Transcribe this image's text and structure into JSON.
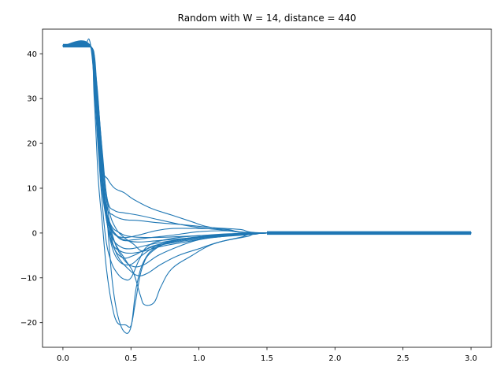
{
  "chart_data": {
    "type": "line",
    "title": "Random with W = 14, distance = 440",
    "xlabel": "",
    "ylabel": "",
    "xlim": [
      -0.15,
      3.15
    ],
    "ylim": [
      -25.5,
      45.5
    ],
    "x_ticks": [
      0.0,
      0.5,
      1.0,
      1.5,
      2.0,
      2.5,
      3.0
    ],
    "x_tick_labels": [
      "0.0",
      "0.5",
      "1.0",
      "1.5",
      "2.0",
      "2.5",
      "3.0"
    ],
    "y_ticks": [
      -20,
      -10,
      0,
      10,
      20,
      30,
      40
    ],
    "y_tick_labels": [
      "−20",
      "−10",
      "0",
      "10",
      "20",
      "30",
      "40"
    ],
    "grid": false,
    "legend": "none",
    "line_color": "#1f77b4",
    "flat_band": {
      "x_start": 0.0,
      "x_end": 0.2,
      "y": 41.8
    },
    "steady_band": {
      "x_start": 1.5,
      "x_end": 3.0,
      "y": 0.0
    },
    "series": [
      {
        "points": [
          [
            0.0,
            41.8
          ],
          [
            0.15,
            41.8
          ],
          [
            0.2,
            42.5
          ],
          [
            0.24,
            30
          ],
          [
            0.28,
            12
          ],
          [
            0.32,
            3
          ],
          [
            0.36,
            -1
          ],
          [
            0.42,
            -3
          ],
          [
            0.5,
            -3.5
          ],
          [
            0.65,
            -2.5
          ],
          [
            0.85,
            -1.5
          ],
          [
            1.1,
            -0.8
          ],
          [
            1.4,
            -0.3
          ],
          [
            1.5,
            0
          ],
          [
            3.0,
            0
          ]
        ]
      },
      {
        "points": [
          [
            0.0,
            41.8
          ],
          [
            0.2,
            41.8
          ],
          [
            0.24,
            36
          ],
          [
            0.28,
            20
          ],
          [
            0.32,
            5
          ],
          [
            0.36,
            -10
          ],
          [
            0.4,
            -18
          ],
          [
            0.45,
            -22
          ],
          [
            0.5,
            -21
          ],
          [
            0.54,
            -12
          ],
          [
            0.6,
            -6
          ],
          [
            0.7,
            -3
          ],
          [
            0.9,
            -1.5
          ],
          [
            1.2,
            -0.5
          ],
          [
            1.5,
            0
          ],
          [
            3.0,
            0
          ]
        ]
      },
      {
        "points": [
          [
            0.0,
            41.8
          ],
          [
            0.2,
            41.8
          ],
          [
            0.23,
            30
          ],
          [
            0.26,
            12
          ],
          [
            0.29,
            2
          ],
          [
            0.32,
            -8
          ],
          [
            0.36,
            -16
          ],
          [
            0.4,
            -20
          ],
          [
            0.46,
            -20.5
          ],
          [
            0.5,
            -20.7
          ],
          [
            0.53,
            -16
          ],
          [
            0.58,
            -8
          ],
          [
            0.66,
            -4
          ],
          [
            0.85,
            -1.5
          ],
          [
            1.2,
            -0.5
          ],
          [
            1.5,
            0
          ],
          [
            3.0,
            0
          ]
        ]
      },
      {
        "points": [
          [
            0.0,
            41.8
          ],
          [
            0.2,
            41.8
          ],
          [
            0.24,
            32
          ],
          [
            0.28,
            14
          ],
          [
            0.32,
            4
          ],
          [
            0.38,
            -2
          ],
          [
            0.46,
            -6
          ],
          [
            0.52,
            -9
          ],
          [
            0.57,
            -14
          ],
          [
            0.6,
            -16
          ],
          [
            0.67,
            -15.5
          ],
          [
            0.72,
            -12
          ],
          [
            0.8,
            -8
          ],
          [
            0.95,
            -5
          ],
          [
            1.1,
            -2.5
          ],
          [
            1.3,
            -1
          ],
          [
            1.5,
            0
          ],
          [
            3.0,
            0
          ]
        ]
      },
      {
        "points": [
          [
            0.0,
            41.8
          ],
          [
            0.2,
            41.8
          ],
          [
            0.25,
            30
          ],
          [
            0.29,
            15
          ],
          [
            0.33,
            12
          ],
          [
            0.38,
            10
          ],
          [
            0.45,
            9
          ],
          [
            0.52,
            7.5
          ],
          [
            0.65,
            5.5
          ],
          [
            0.8,
            4
          ],
          [
            0.95,
            2.5
          ],
          [
            1.05,
            1.5
          ],
          [
            1.2,
            0.8
          ],
          [
            1.5,
            0
          ],
          [
            3.0,
            0
          ]
        ]
      },
      {
        "points": [
          [
            0.0,
            41.8
          ],
          [
            0.2,
            41.8
          ],
          [
            0.24,
            33
          ],
          [
            0.28,
            16
          ],
          [
            0.32,
            6
          ],
          [
            0.37,
            4
          ],
          [
            0.45,
            3
          ],
          [
            0.55,
            2.8
          ],
          [
            0.7,
            2.3
          ],
          [
            0.9,
            1.8
          ],
          [
            1.1,
            1.2
          ],
          [
            1.3,
            0.8
          ],
          [
            1.5,
            0
          ],
          [
            3.0,
            0
          ]
        ]
      },
      {
        "points": [
          [
            0.0,
            41.8
          ],
          [
            0.2,
            41.8
          ],
          [
            0.24,
            34
          ],
          [
            0.29,
            18
          ],
          [
            0.33,
            5
          ],
          [
            0.38,
            -2
          ],
          [
            0.45,
            -6
          ],
          [
            0.52,
            -7.5
          ],
          [
            0.6,
            -7
          ],
          [
            0.7,
            -5
          ],
          [
            0.85,
            -3
          ],
          [
            1.0,
            -1.5
          ],
          [
            1.2,
            -0.7
          ],
          [
            1.5,
            0
          ],
          [
            3.0,
            0
          ]
        ]
      },
      {
        "points": [
          [
            0.0,
            41.8
          ],
          [
            0.2,
            41.8
          ],
          [
            0.23,
            32
          ],
          [
            0.27,
            14
          ],
          [
            0.31,
            0
          ],
          [
            0.35,
            -6
          ],
          [
            0.4,
            -9
          ],
          [
            0.45,
            -10.3
          ],
          [
            0.5,
            -10
          ],
          [
            0.56,
            -6
          ],
          [
            0.62,
            -3
          ],
          [
            0.75,
            -1.5
          ],
          [
            1.0,
            -0.6
          ],
          [
            1.5,
            0
          ],
          [
            3.0,
            0
          ]
        ]
      },
      {
        "points": [
          [
            0.0,
            41.8
          ],
          [
            0.2,
            41.8
          ],
          [
            0.24,
            35
          ],
          [
            0.28,
            18
          ],
          [
            0.32,
            4
          ],
          [
            0.36,
            -3
          ],
          [
            0.42,
            -6.5
          ],
          [
            0.5,
            -7
          ],
          [
            0.58,
            -5
          ],
          [
            0.68,
            -3
          ],
          [
            0.8,
            -1.8
          ],
          [
            1.0,
            -1
          ],
          [
            1.3,
            -0.4
          ],
          [
            1.5,
            0
          ],
          [
            3.0,
            0
          ]
        ]
      },
      {
        "points": [
          [
            0.0,
            41.8
          ],
          [
            0.2,
            41.8
          ],
          [
            0.25,
            28
          ],
          [
            0.3,
            10
          ],
          [
            0.35,
            0
          ],
          [
            0.4,
            -5
          ],
          [
            0.48,
            -8
          ],
          [
            0.55,
            -9.5
          ],
          [
            0.62,
            -9
          ],
          [
            0.72,
            -7
          ],
          [
            0.85,
            -5
          ],
          [
            1.0,
            -3.5
          ],
          [
            1.15,
            -2
          ],
          [
            1.35,
            -0.8
          ],
          [
            1.5,
            0
          ],
          [
            3.0,
            0
          ]
        ]
      },
      {
        "points": [
          [
            0.0,
            41.8
          ],
          [
            0.2,
            41.8
          ],
          [
            0.22,
            38
          ],
          [
            0.26,
            22
          ],
          [
            0.3,
            8
          ],
          [
            0.35,
            2
          ],
          [
            0.42,
            0
          ],
          [
            0.5,
            -0.8
          ],
          [
            0.65,
            -1
          ],
          [
            0.85,
            -0.8
          ],
          [
            1.05,
            -0.5
          ],
          [
            1.3,
            -0.2
          ],
          [
            1.5,
            0
          ],
          [
            3.0,
            0
          ]
        ]
      },
      {
        "points": [
          [
            0.0,
            41.8
          ],
          [
            0.2,
            41.8
          ],
          [
            0.24,
            33
          ],
          [
            0.28,
            15
          ],
          [
            0.32,
            3
          ],
          [
            0.37,
            -3
          ],
          [
            0.44,
            -5.5
          ],
          [
            0.52,
            -5
          ],
          [
            0.62,
            -3.5
          ],
          [
            0.75,
            -2.5
          ],
          [
            0.95,
            -1.5
          ],
          [
            1.2,
            -0.6
          ],
          [
            1.5,
            0
          ],
          [
            3.0,
            0
          ]
        ]
      },
      {
        "points": [
          [
            0.0,
            41.8
          ],
          [
            0.2,
            41.8
          ],
          [
            0.25,
            32
          ],
          [
            0.3,
            14
          ],
          [
            0.34,
            5
          ],
          [
            0.39,
            1
          ],
          [
            0.45,
            -1
          ],
          [
            0.52,
            -2.5
          ],
          [
            0.58,
            -4
          ],
          [
            0.65,
            -3
          ],
          [
            0.78,
            -2
          ],
          [
            0.95,
            -1
          ],
          [
            1.2,
            -0.3
          ],
          [
            1.5,
            0
          ],
          [
            3.0,
            0
          ]
        ]
      },
      {
        "points": [
          [
            0.0,
            41.8
          ],
          [
            0.2,
            41.8
          ],
          [
            0.23,
            34
          ],
          [
            0.27,
            17
          ],
          [
            0.31,
            5
          ],
          [
            0.36,
            -2
          ],
          [
            0.42,
            -4
          ],
          [
            0.5,
            -4.5
          ],
          [
            0.6,
            -4
          ],
          [
            0.72,
            -3
          ],
          [
            0.9,
            -2
          ],
          [
            1.1,
            -1
          ],
          [
            1.35,
            -0.4
          ],
          [
            1.5,
            0
          ],
          [
            3.0,
            0
          ]
        ]
      },
      {
        "points": [
          [
            0.0,
            41.8
          ],
          [
            0.2,
            41.8
          ],
          [
            0.24,
            31
          ],
          [
            0.28,
            13
          ],
          [
            0.33,
            3
          ],
          [
            0.38,
            0
          ],
          [
            0.45,
            -1.5
          ],
          [
            0.55,
            -2
          ],
          [
            0.7,
            -1.7
          ],
          [
            0.9,
            -1.2
          ],
          [
            1.1,
            -0.6
          ],
          [
            1.3,
            -0.2
          ],
          [
            1.5,
            0
          ],
          [
            3.0,
            0
          ]
        ]
      },
      {
        "points": [
          [
            0.0,
            41.8
          ],
          [
            0.2,
            41.8
          ],
          [
            0.25,
            33
          ],
          [
            0.29,
            16
          ],
          [
            0.33,
            7
          ],
          [
            0.38,
            5
          ],
          [
            0.45,
            4.5
          ],
          [
            0.55,
            4
          ],
          [
            0.7,
            3
          ],
          [
            0.85,
            2
          ],
          [
            1.0,
            1.2
          ],
          [
            1.2,
            0.6
          ],
          [
            1.5,
            0
          ],
          [
            3.0,
            0
          ]
        ]
      },
      {
        "points": [
          [
            0.0,
            41.8
          ],
          [
            0.2,
            41.8
          ],
          [
            0.24,
            34
          ],
          [
            0.28,
            16
          ],
          [
            0.32,
            4
          ],
          [
            0.37,
            0
          ],
          [
            0.45,
            -1
          ],
          [
            0.55,
            -0.5
          ],
          [
            0.68,
            0.5
          ],
          [
            0.8,
            1
          ],
          [
            1.0,
            1
          ],
          [
            1.2,
            0.8
          ],
          [
            1.5,
            0
          ],
          [
            3.0,
            0
          ]
        ]
      },
      {
        "points": [
          [
            0.0,
            41.8
          ],
          [
            0.2,
            41.8
          ],
          [
            0.23,
            35
          ],
          [
            0.27,
            18
          ],
          [
            0.31,
            6
          ],
          [
            0.36,
            1
          ],
          [
            0.43,
            -1.5
          ],
          [
            0.52,
            -1.5
          ],
          [
            0.65,
            -1
          ],
          [
            0.8,
            -0.5
          ],
          [
            1.0,
            0.3
          ],
          [
            1.2,
            0.5
          ],
          [
            1.5,
            0
          ],
          [
            3.0,
            0
          ]
        ]
      }
    ]
  }
}
